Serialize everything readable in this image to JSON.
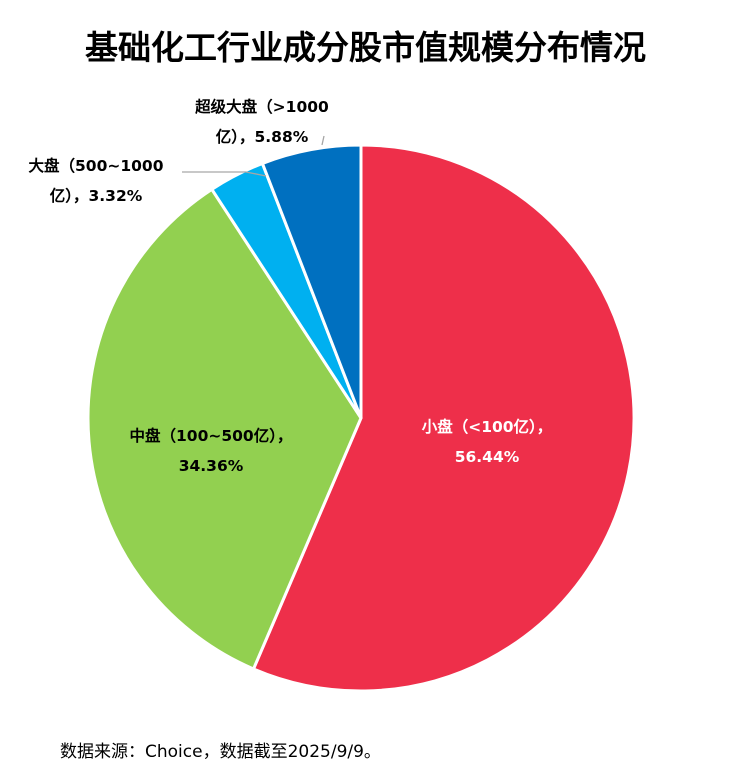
{
  "chart_data": {
    "type": "pie",
    "title": "基础化工行业成分股市值规模分布情况",
    "slices": [
      {
        "label_lines": [
          "小盘（<100亿），",
          "56.44%"
        ],
        "value": 56.44,
        "color": "#ee2f4a",
        "label_color": "light",
        "leader": false
      },
      {
        "label_lines": [
          "中盘（100~500亿），",
          "34.36%"
        ],
        "value": 34.36,
        "color": "#92d050",
        "label_color": "dark",
        "leader": false
      },
      {
        "label_lines": [
          "大盘（500~1000",
          "亿），3.32%"
        ],
        "value": 3.32,
        "color": "#00b0f0",
        "label_color": "dark",
        "leader": true
      },
      {
        "label_lines": [
          "超级大盘（>1000",
          "亿），5.88%"
        ],
        "value": 5.88,
        "color": "#0070c0",
        "label_color": "dark",
        "leader": true
      }
    ],
    "start": "12 o'clock",
    "direction": "clockwise",
    "legend": "none"
  },
  "source_note": "数据来源：Choice，数据截至2025/9/9。"
}
